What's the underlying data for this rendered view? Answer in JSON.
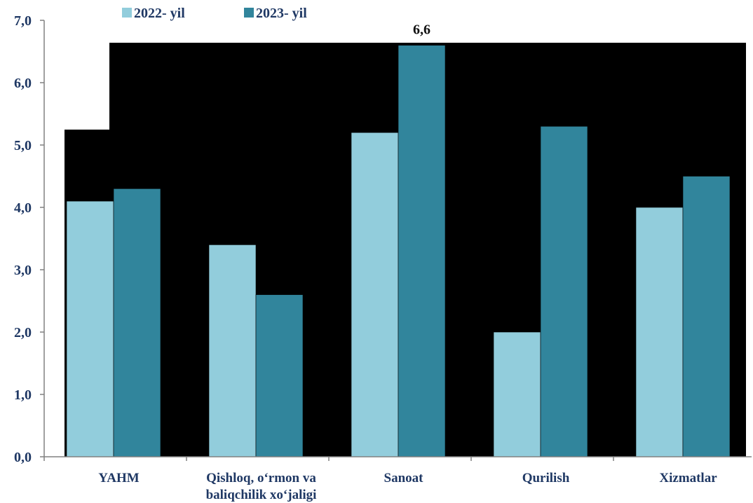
{
  "chart_data": {
    "type": "bar",
    "categories": [
      "YAHM",
      "Qishloq, o‘rmon va baliqchilik xo‘jaligi",
      "Sanoat",
      "Qurilish",
      "Xizmatlar"
    ],
    "category_lines": [
      [
        "YAHM"
      ],
      [
        "Qishloq, o‘rmon va",
        "baliqchilik xo‘jaligi"
      ],
      [
        "Sanoat"
      ],
      [
        "Qurilish"
      ],
      [
        "Xizmatlar"
      ]
    ],
    "series": [
      {
        "name": "2022- yil",
        "values": [
          4.1,
          3.4,
          5.2,
          2.0,
          4.0
        ],
        "color": "#92cddc"
      },
      {
        "name": "2023- yil",
        "values": [
          4.3,
          2.6,
          6.6,
          5.3,
          4.5
        ],
        "color": "#31859c"
      }
    ],
    "y_ticks": [
      "0,0",
      "1,0",
      "2,0",
      "3,0",
      "4,0",
      "5,0",
      "6,0",
      "7,0"
    ],
    "ylim": [
      0,
      7
    ],
    "data_labels": [
      {
        "series": 1,
        "category": 2,
        "text": "6,6"
      }
    ],
    "legend_position": "top-left",
    "plot_background": "#000000",
    "grid": false
  }
}
